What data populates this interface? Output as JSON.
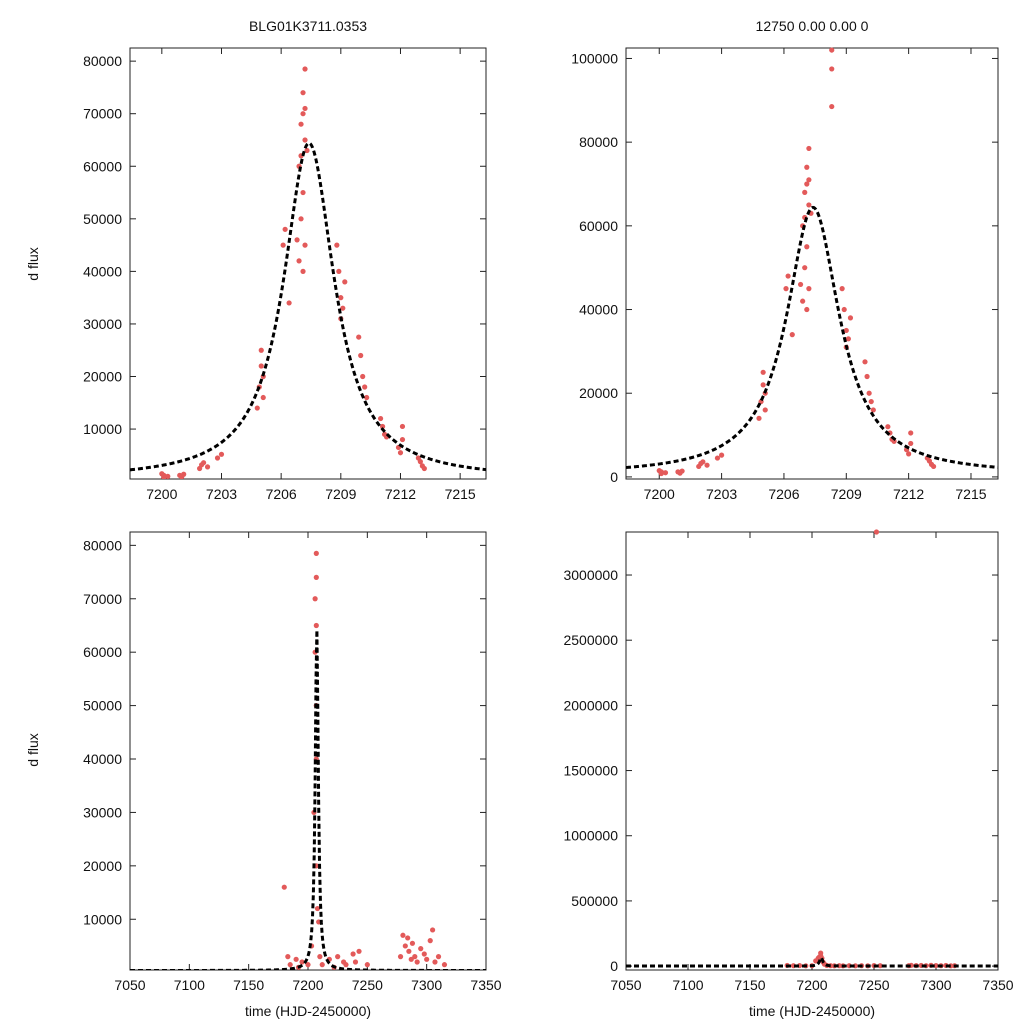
{
  "header": {
    "left_title": "BLG01K3711.0353",
    "right_title": "12750  0.00  0.00  0"
  },
  "labels": {
    "ylabel_top": "d flux",
    "ylabel_bottom": "d flux",
    "xlabel_left": "time (HJD-2450000)",
    "xlabel_right": "time (HJD-2450000)"
  },
  "model": {
    "t0": 7207.4,
    "tau": 1.55,
    "peak": 64000,
    "base": 400
  },
  "chart_data": [
    {
      "type": "scatter",
      "panel": "top-left",
      "title": "BLG01K3711.0353",
      "xlabel": "",
      "ylabel": "d flux",
      "xlim": [
        7198.4,
        7216.3
      ],
      "ylim": [
        500,
        82500
      ],
      "xticks": [
        7200,
        7203,
        7206,
        7209,
        7212,
        7215
      ],
      "yticks": [
        10000,
        20000,
        30000,
        40000,
        50000,
        60000,
        70000,
        80000
      ],
      "series": [
        {
          "name": "data",
          "x": [
            7200.0,
            7200.1,
            7200.1,
            7200.3,
            7200.9,
            7201.0,
            7201.1,
            7201.9,
            7202.0,
            7202.1,
            7202.3,
            7202.8,
            7203.0,
            7204.8,
            7204.9,
            7205.0,
            7205.0,
            7205.1,
            7205.1,
            7206.1,
            7206.2,
            7206.4,
            7206.8,
            7206.9,
            7206.9,
            7207.0,
            7207.0,
            7207.1,
            7207.1,
            7207.2,
            7207.2,
            7207.0,
            7207.1,
            7207.2,
            7207.1,
            7207.2,
            7207.3,
            7208.8,
            7208.9,
            7209.0,
            7209.0,
            7209.1,
            7209.2,
            7209.9,
            7210.0,
            7210.1,
            7210.2,
            7210.3,
            7211.0,
            7211.1,
            7211.2,
            7211.3,
            7211.9,
            7212.0,
            7212.1,
            7212.1,
            7212.9,
            7213.0,
            7213.1,
            7213.2
          ],
          "y": [
            1500,
            800,
            1200,
            1000,
            1200,
            900,
            1400,
            2500,
            3200,
            3600,
            2800,
            4500,
            5200,
            14000,
            18000,
            22000,
            25000,
            20000,
            16000,
            45000,
            48000,
            34000,
            46000,
            42000,
            60000,
            62000,
            68000,
            70000,
            74000,
            78500,
            71000,
            50000,
            55000,
            65000,
            40000,
            45000,
            63000,
            45000,
            40000,
            35000,
            31000,
            33000,
            38000,
            27500,
            24000,
            20000,
            18000,
            16000,
            12000,
            10500,
            9000,
            8500,
            6500,
            5500,
            10500,
            8000,
            4500,
            3800,
            3000,
            2500
          ]
        },
        {
          "name": "model",
          "x": [],
          "y": []
        }
      ]
    },
    {
      "type": "scatter",
      "panel": "top-right",
      "title": "12750  0.00  0.00  0",
      "xlabel": "",
      "ylabel": "",
      "xlim": [
        7198.4,
        7216.3
      ],
      "ylim": [
        -500,
        102500
      ],
      "xticks": [
        7200,
        7203,
        7206,
        7209,
        7212,
        7215
      ],
      "yticks": [
        0,
        20000,
        40000,
        60000,
        80000,
        100000
      ],
      "series": [
        {
          "name": "data",
          "x": [
            7200.0,
            7200.1,
            7200.1,
            7200.3,
            7200.9,
            7201.0,
            7201.1,
            7201.9,
            7202.0,
            7202.1,
            7202.3,
            7202.8,
            7203.0,
            7204.8,
            7204.9,
            7205.0,
            7205.0,
            7205.1,
            7205.1,
            7206.1,
            7206.2,
            7206.4,
            7206.8,
            7206.9,
            7206.9,
            7207.0,
            7207.0,
            7207.1,
            7207.1,
            7207.2,
            7207.2,
            7207.0,
            7207.1,
            7207.2,
            7207.1,
            7207.2,
            7207.3,
            7208.8,
            7208.9,
            7209.0,
            7209.0,
            7209.1,
            7209.2,
            7209.9,
            7210.0,
            7210.1,
            7210.2,
            7210.3,
            7211.0,
            7211.1,
            7211.2,
            7211.3,
            7211.9,
            7212.0,
            7212.1,
            7212.1,
            7212.9,
            7213.0,
            7213.1,
            7213.2,
            7208.3,
            7208.3,
            7208.3
          ],
          "y": [
            1500,
            800,
            1200,
            1000,
            1200,
            900,
            1400,
            2500,
            3200,
            3600,
            2800,
            4500,
            5200,
            14000,
            18000,
            22000,
            25000,
            20000,
            16000,
            45000,
            48000,
            34000,
            46000,
            42000,
            60000,
            62000,
            68000,
            70000,
            74000,
            78500,
            71000,
            50000,
            55000,
            65000,
            40000,
            45000,
            63000,
            45000,
            40000,
            35000,
            31000,
            33000,
            38000,
            27500,
            24000,
            20000,
            18000,
            16000,
            12000,
            10500,
            9000,
            8500,
            6500,
            5500,
            10500,
            8000,
            4500,
            3800,
            3000,
            2500,
            102000,
            97500,
            88500
          ]
        },
        {
          "name": "model",
          "x": [],
          "y": []
        }
      ]
    },
    {
      "type": "scatter",
      "panel": "bottom-left",
      "xlabel": "time (HJD-2450000)",
      "ylabel": "d flux",
      "xlim": [
        7050,
        7350
      ],
      "ylim": [
        500,
        82500
      ],
      "xticks": [
        7050,
        7100,
        7150,
        7200,
        7250,
        7300,
        7350
      ],
      "yticks": [
        10000,
        20000,
        30000,
        40000,
        50000,
        60000,
        70000,
        80000
      ],
      "series": [
        {
          "name": "data",
          "x": [
            7180,
            7183,
            7185,
            7190,
            7192,
            7195,
            7200,
            7203,
            7205,
            7206,
            7206,
            7207,
            7207,
            7207,
            7207,
            7207,
            7207,
            7208,
            7209,
            7210,
            7212,
            7218,
            7222,
            7225,
            7230,
            7232,
            7238,
            7240,
            7243,
            7250,
            7278,
            7280,
            7282,
            7284,
            7285,
            7287,
            7288,
            7290,
            7292,
            7295,
            7298,
            7300,
            7303,
            7305,
            7307,
            7310,
            7315
          ],
          "y": [
            16000,
            3000,
            1500,
            2500,
            1000,
            2000,
            1500,
            5000,
            30000,
            60000,
            70000,
            78500,
            74000,
            65000,
            50000,
            40000,
            20000,
            12000,
            9500,
            3000,
            1500,
            2500,
            1000,
            3000,
            2000,
            1500,
            3500,
            2000,
            4000,
            1500,
            3000,
            7000,
            5000,
            6500,
            4000,
            2500,
            5500,
            3000,
            2000,
            4500,
            3500,
            2500,
            6000,
            8000,
            2000,
            3000,
            1500
          ]
        },
        {
          "name": "model",
          "x": [],
          "y": []
        }
      ]
    },
    {
      "type": "scatter",
      "panel": "bottom-right",
      "xlabel": "time (HJD-2450000)",
      "ylabel": "",
      "xlim": [
        7050,
        7350
      ],
      "ylim": [
        -30000,
        3330000
      ],
      "xticks": [
        7050,
        7100,
        7150,
        7200,
        7250,
        7300,
        7350
      ],
      "yticks": [
        0,
        500000,
        1000000,
        1500000,
        2000000,
        2500000,
        3000000
      ],
      "series": [
        {
          "name": "data",
          "x": [
            7180,
            7185,
            7190,
            7195,
            7200,
            7203,
            7205,
            7206,
            7207,
            7207,
            7208,
            7209,
            7210,
            7212,
            7215,
            7218,
            7222,
            7225,
            7230,
            7235,
            7240,
            7245,
            7250,
            7255,
            7278,
            7280,
            7284,
            7288,
            7292,
            7296,
            7300,
            7304,
            7308,
            7312,
            7315,
            7252
          ],
          "y": [
            5000,
            3000,
            4000,
            2000,
            3000,
            40000,
            60000,
            70000,
            80000,
            100000,
            60000,
            30000,
            15000,
            5000,
            3000,
            2000,
            3000,
            2000,
            3000,
            2000,
            3000,
            2000,
            4000,
            3000,
            3000,
            6000,
            4000,
            5000,
            3000,
            6000,
            4000,
            3000,
            5000,
            2000,
            3000,
            3330000
          ]
        },
        {
          "name": "model",
          "x": [],
          "y": []
        }
      ]
    }
  ]
}
